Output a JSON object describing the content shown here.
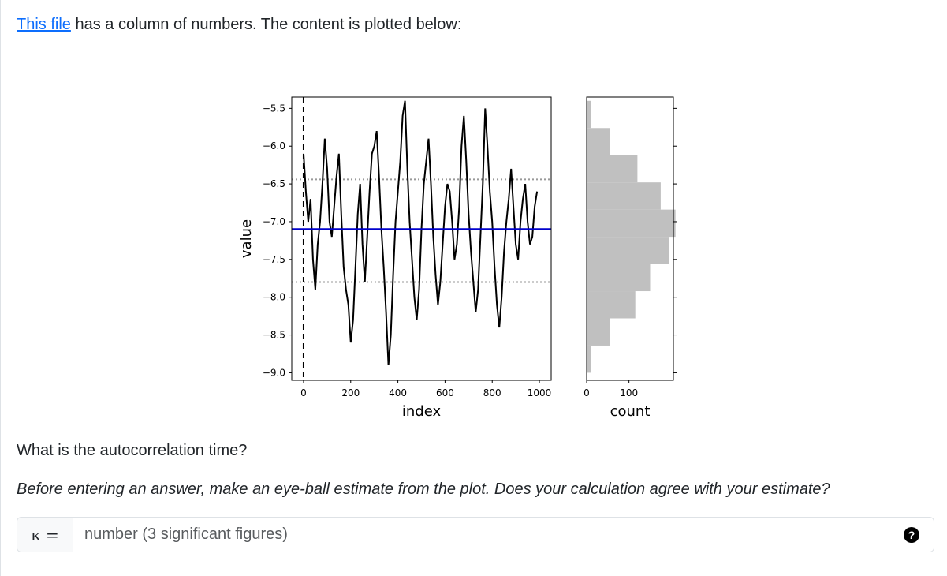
{
  "intro": {
    "link_text": "This file",
    "text": " has a column of numbers. The content is plotted below:"
  },
  "chart_data": [
    {
      "type": "line",
      "xlabel": "index",
      "ylabel": "value",
      "xlim": [
        -50,
        1050
      ],
      "ylim": [
        -9.1,
        -5.35
      ],
      "xticks": [
        0,
        200,
        400,
        600,
        800,
        1000
      ],
      "xtick_labels": [
        "0",
        "200",
        "400",
        "600",
        "800",
        "1000"
      ],
      "yticks": [
        -5.5,
        -6.0,
        -6.5,
        -7.0,
        -7.5,
        -8.0,
        -8.5,
        -9.0
      ],
      "ytick_labels": [
        "−5.5",
        "−6.0",
        "−6.5",
        "−7.0",
        "−7.5",
        "−8.0",
        "−8.5",
        "−9.0"
      ],
      "mean_line": {
        "value": -7.1,
        "color": "#0000cc"
      },
      "std_lines": {
        "values": [
          -6.44,
          -7.8
        ],
        "color": "#999999"
      },
      "start_marker": {
        "x": 0,
        "style": "dashed",
        "color": "#000000"
      },
      "series_color": "#000000",
      "series": [
        {
          "x": [
            0,
            10,
            20,
            30,
            40,
            50,
            60,
            70,
            80,
            90,
            100,
            110,
            120,
            130,
            140,
            150,
            160,
            170,
            180,
            190,
            200,
            210,
            220,
            230,
            240,
            250,
            260,
            270,
            280,
            290,
            300,
            310,
            320,
            330,
            340,
            350,
            360,
            370,
            380,
            390,
            400,
            410,
            420,
            430,
            440,
            450,
            460,
            470,
            480,
            490,
            500,
            510,
            520,
            530,
            540,
            550,
            560,
            570,
            580,
            590,
            600,
            610,
            620,
            630,
            640,
            650,
            660,
            670,
            680,
            690,
            700,
            710,
            720,
            730,
            740,
            750,
            760,
            770,
            780,
            790,
            800,
            810,
            820,
            830,
            840,
            850,
            860,
            870,
            880,
            890,
            900,
            910,
            920,
            930,
            940,
            950,
            960,
            970,
            980,
            990
          ],
          "y": [
            -6.1,
            -6.6,
            -7.0,
            -6.7,
            -7.5,
            -7.9,
            -7.3,
            -7.0,
            -6.5,
            -5.9,
            -6.3,
            -7.0,
            -7.2,
            -6.8,
            -6.4,
            -6.1,
            -6.9,
            -7.6,
            -7.9,
            -8.1,
            -8.6,
            -8.3,
            -7.6,
            -6.9,
            -6.5,
            -7.3,
            -7.8,
            -7.2,
            -6.6,
            -6.1,
            -6.0,
            -5.8,
            -6.4,
            -7.1,
            -7.6,
            -8.2,
            -8.9,
            -8.5,
            -7.7,
            -7.0,
            -6.6,
            -6.2,
            -5.6,
            -5.4,
            -6.3,
            -7.0,
            -7.5,
            -8.0,
            -8.3,
            -7.9,
            -7.1,
            -6.5,
            -6.2,
            -5.9,
            -6.5,
            -7.2,
            -7.7,
            -8.1,
            -7.8,
            -7.3,
            -6.8,
            -6.5,
            -6.6,
            -7.0,
            -7.5,
            -7.3,
            -6.8,
            -6.0,
            -5.6,
            -6.2,
            -6.9,
            -7.4,
            -7.8,
            -8.2,
            -7.9,
            -7.2,
            -6.5,
            -5.5,
            -6.0,
            -6.6,
            -7.0,
            -7.6,
            -8.1,
            -8.4,
            -8.0,
            -7.4,
            -7.0,
            -6.7,
            -6.3,
            -6.8,
            -7.3,
            -7.5,
            -7.0,
            -6.7,
            -6.5,
            -7.0,
            -7.3,
            -7.2,
            -6.8,
            -6.6
          ]
        }
      ]
    },
    {
      "type": "bar",
      "orientation": "horizontal",
      "xlabel": "count",
      "xticks": [
        0,
        100
      ],
      "xtick_labels": [
        "0",
        "100"
      ],
      "bin_edges": [
        -9.0,
        -8.64,
        -8.28,
        -7.92,
        -7.56,
        -7.2,
        -6.84,
        -6.48,
        -6.12,
        -5.76,
        -5.4
      ],
      "values": [
        10,
        55,
        115,
        150,
        195,
        210,
        175,
        120,
        55,
        10
      ],
      "color": "#c0c0c0"
    }
  ],
  "question": "What is the autocorrelation time?",
  "hint": "Before entering an answer, make an eye-ball estimate from the plot. Does your calculation agree with your estimate?",
  "answer": {
    "label": "κ =",
    "placeholder": "number (3 significant figures)",
    "value": "",
    "help_symbol": "?"
  }
}
